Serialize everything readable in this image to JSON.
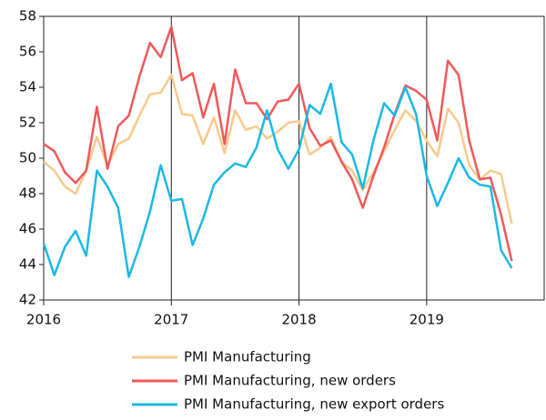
{
  "chart_data": {
    "type": "line",
    "categories": [
      "2016",
      null,
      null,
      null,
      null,
      null,
      null,
      null,
      null,
      null,
      null,
      null,
      "2017",
      null,
      null,
      null,
      null,
      null,
      null,
      null,
      null,
      null,
      null,
      null,
      "2018",
      null,
      null,
      null,
      null,
      null,
      null,
      null,
      null,
      null,
      null,
      null,
      "2019",
      null,
      null,
      null,
      null,
      null,
      null,
      null,
      null
    ],
    "series": [
      {
        "name": "PMI Manufacturing",
        "color": "#f9c98a",
        "values": [
          49.8,
          49.3,
          48.4,
          48.0,
          49.3,
          51.2,
          49.6,
          50.8,
          51.1,
          52.4,
          53.6,
          53.7,
          54.7,
          52.5,
          52.4,
          50.8,
          52.3,
          50.3,
          52.7,
          51.6,
          51.8,
          51.1,
          51.5,
          52.0,
          52.1,
          50.2,
          50.6,
          51.2,
          49.8,
          49.3,
          48.2,
          49.2,
          50.4,
          51.6,
          52.7,
          52.1,
          51.0,
          50.1,
          52.8,
          52.0,
          49.6,
          48.8,
          49.3,
          49.1,
          46.3
        ]
      },
      {
        "name": "PMI Manufacturing, new orders",
        "color": "#f0585a",
        "values": [
          50.8,
          50.4,
          49.2,
          48.6,
          49.3,
          52.9,
          49.4,
          51.8,
          52.4,
          54.6,
          56.5,
          55.7,
          57.4,
          54.4,
          54.8,
          52.3,
          54.2,
          50.8,
          55.0,
          53.1,
          53.1,
          52.2,
          53.2,
          53.3,
          54.2,
          51.7,
          50.7,
          51.0,
          49.8,
          48.8,
          47.2,
          49.0,
          50.6,
          52.5,
          54.1,
          53.8,
          53.3,
          51.0,
          55.5,
          54.7,
          51.0,
          48.8,
          48.9,
          46.8,
          44.2
        ]
      },
      {
        "name": "PMI Manufacturing, new export orders",
        "color": "#1ab8e6",
        "values": [
          45.2,
          43.4,
          45.0,
          45.9,
          44.5,
          49.3,
          48.4,
          47.2,
          43.3,
          45.0,
          47.0,
          49.6,
          47.6,
          47.7,
          45.1,
          46.6,
          48.5,
          49.2,
          49.7,
          49.5,
          50.6,
          52.7,
          50.5,
          49.4,
          50.5,
          53.0,
          52.5,
          54.2,
          50.9,
          50.2,
          48.3,
          51.0,
          53.1,
          52.4,
          54.0,
          52.5,
          49.0,
          47.3,
          48.6,
          50.0,
          48.9,
          48.5,
          48.4,
          44.8,
          43.8
        ]
      }
    ],
    "ylim": [
      42,
      58
    ],
    "yticks": [
      42,
      44,
      46,
      48,
      50,
      52,
      54,
      56,
      58
    ],
    "legend": "bottom"
  }
}
